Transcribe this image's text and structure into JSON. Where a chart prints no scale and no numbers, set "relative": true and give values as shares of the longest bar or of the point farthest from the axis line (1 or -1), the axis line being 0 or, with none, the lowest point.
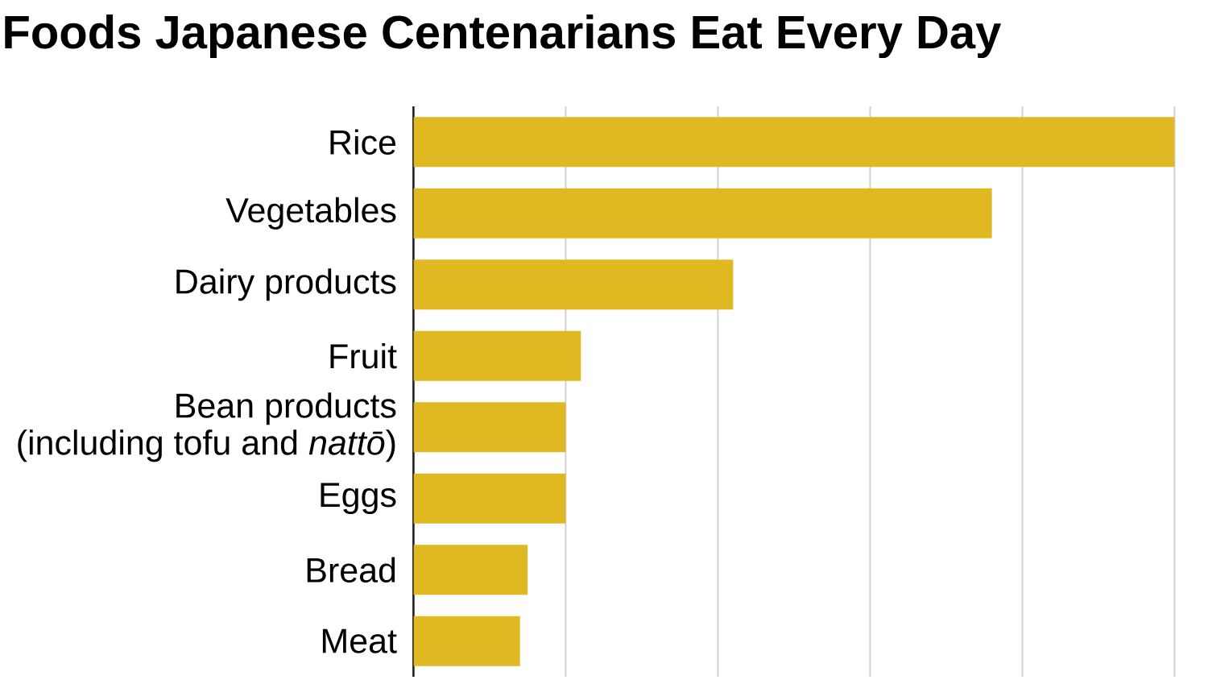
{
  "chart_data": {
    "type": "bar",
    "title": "Foods Japanese Centenarians Eat Every Day",
    "orientation": "horizontal",
    "relative": true,
    "categories": [
      "Rice",
      "Vegetables",
      "Dairy products",
      "Fruit",
      "Bean products\n(including tofu and *nattō*)",
      "Eggs",
      "Bread",
      "Meat"
    ],
    "values": [
      1,
      0.76,
      0.42,
      0.22,
      0.2,
      0.2,
      0.15,
      0.14
    ],
    "color": "#e0b922",
    "grid": "x"
  }
}
